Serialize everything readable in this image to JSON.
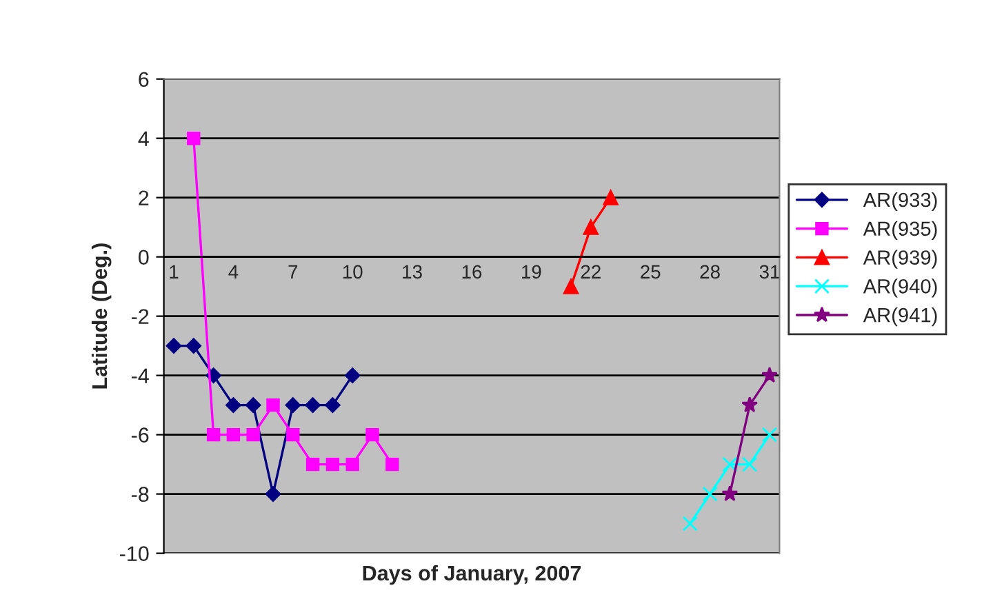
{
  "chart_data": {
    "type": "line",
    "xlabel": "Days of January, 2007",
    "ylabel": "Latitude (Deg.)",
    "categories": [
      "1",
      null,
      null,
      "4",
      null,
      null,
      "7",
      null,
      null,
      "10",
      null,
      null,
      "13",
      null,
      null,
      "16",
      null,
      null,
      "19",
      null,
      null,
      "22",
      null,
      null,
      "25",
      null,
      null,
      "28",
      null,
      null,
      "31"
    ],
    "ylim": [
      -10,
      6
    ],
    "yticks": [
      -10,
      -8,
      -6,
      -4,
      -2,
      0,
      2,
      4,
      6
    ],
    "grid": "y",
    "legend": "right",
    "series": [
      {
        "name": "AR(933)",
        "color": "#000080",
        "marker": "diamond",
        "values": [
          -3,
          -3,
          -4,
          -5,
          -5,
          -8,
          -5,
          -5,
          -5,
          -4,
          null,
          null,
          null,
          null,
          null,
          null,
          null,
          null,
          null,
          null,
          null,
          null,
          null,
          null,
          null,
          null,
          null,
          null,
          null,
          null,
          null
        ]
      },
      {
        "name": "AR(935)",
        "color": "#ff00ff",
        "marker": "square",
        "values": [
          null,
          4,
          -6,
          -6,
          -6,
          -5,
          -6,
          -7,
          -7,
          -7,
          -6,
          -7,
          null,
          null,
          null,
          null,
          null,
          null,
          null,
          null,
          null,
          null,
          null,
          null,
          null,
          null,
          null,
          null,
          null,
          null,
          null
        ]
      },
      {
        "name": "AR(939)",
        "color": "#ff0000",
        "marker": "triangle",
        "values": [
          null,
          null,
          null,
          null,
          null,
          null,
          null,
          null,
          null,
          null,
          null,
          null,
          null,
          null,
          null,
          null,
          null,
          null,
          null,
          null,
          -1,
          1,
          2,
          null,
          null,
          null,
          null,
          null,
          null,
          null,
          null
        ]
      },
      {
        "name": "AR(940)",
        "color": "#00ffff",
        "marker": "cross",
        "values": [
          null,
          null,
          null,
          null,
          null,
          null,
          null,
          null,
          null,
          null,
          null,
          null,
          null,
          null,
          null,
          null,
          null,
          null,
          null,
          null,
          null,
          null,
          null,
          null,
          null,
          null,
          -9,
          -8,
          -7,
          -7,
          -6
        ]
      },
      {
        "name": "AR(941)",
        "color": "#800080",
        "marker": "star",
        "values": [
          null,
          null,
          null,
          null,
          null,
          null,
          null,
          null,
          null,
          null,
          null,
          null,
          null,
          null,
          null,
          null,
          null,
          null,
          null,
          null,
          null,
          null,
          null,
          null,
          null,
          null,
          null,
          null,
          -8,
          -5,
          -4
        ]
      }
    ]
  }
}
